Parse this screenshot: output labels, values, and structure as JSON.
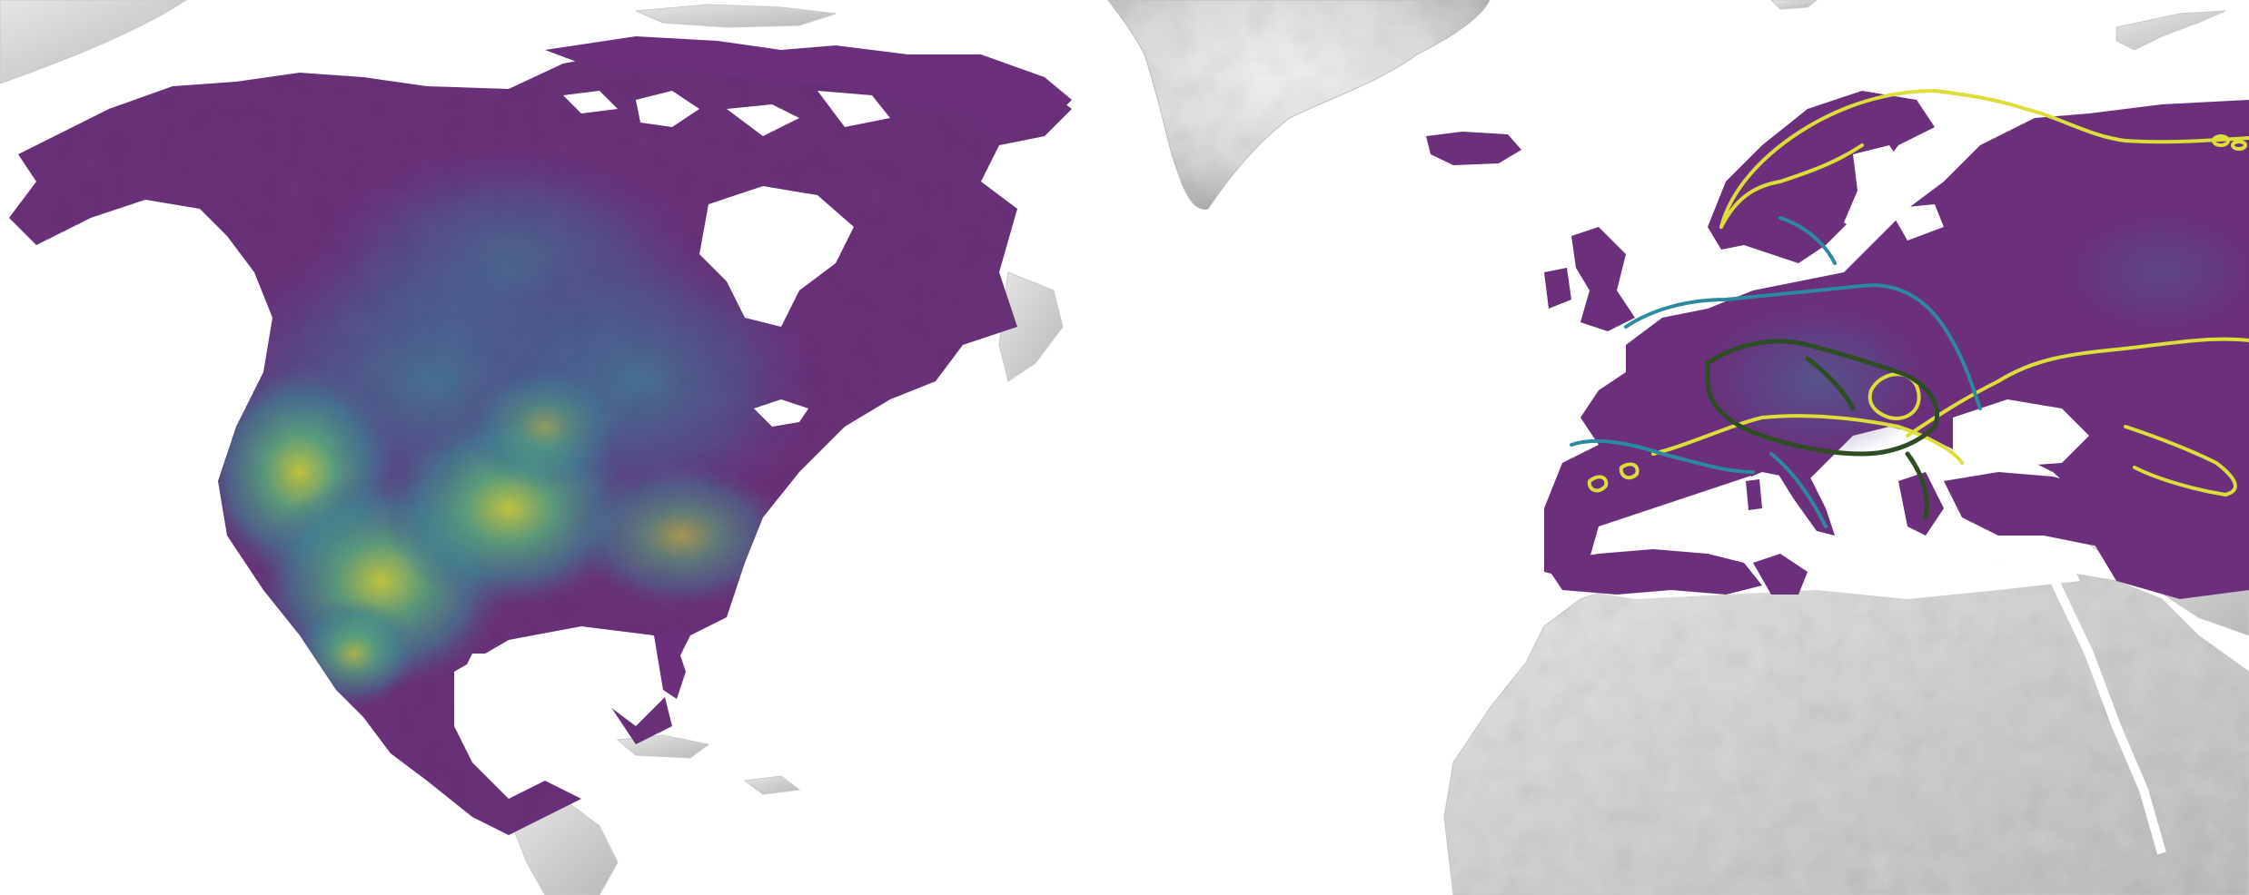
{
  "map": {
    "projection_style": "shaded-relief world map",
    "colors": {
      "ocean": "#ffffff",
      "basemap_land": "#d6d6d6",
      "basemap_shadow": "#a9a9a9",
      "viridis_low": "#6b2f7a",
      "viridis_mid_low": "#4f6496",
      "viridis_mid": "#3f8d98",
      "viridis_mid_high": "#49b38a",
      "viridis_high": "#d9dc3c",
      "contour_yellow": "#dede3a",
      "contour_teal": "#2c8aa0",
      "contour_dark_green": "#2f4d25"
    },
    "regions": [
      "north-america-suitability",
      "europe-suitability",
      "greenland-basemap",
      "africa-basemap",
      "arabia-basemap"
    ],
    "contour_classes": [
      "yellow",
      "teal",
      "dark-green"
    ]
  }
}
